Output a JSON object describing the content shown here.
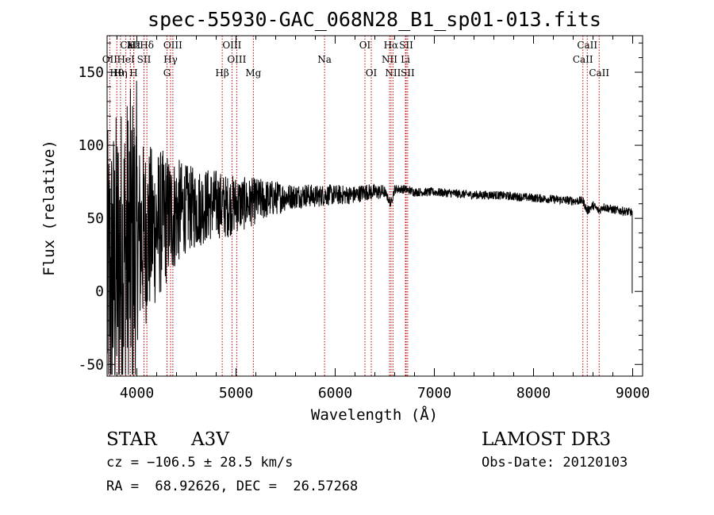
{
  "chart_data": {
    "type": "line",
    "title": "spec-55930-GAC_068N28_B1_sp01-013.fits",
    "xlabel": "Wavelength (Å)",
    "ylabel": "Flux (relative)",
    "xlim": [
      3700,
      9100
    ],
    "ylim": [
      -58,
      175
    ],
    "xticks": [
      4000,
      5000,
      6000,
      7000,
      8000,
      9000
    ],
    "yticks": [
      -50,
      0,
      50,
      100,
      150
    ],
    "series": [
      {
        "name": "spectrum",
        "x": [
          3700,
          3760,
          3820,
          3880,
          3940,
          4000,
          4100,
          4200,
          4300,
          4400,
          4500,
          4600,
          4700,
          4800,
          4900,
          5000,
          5100,
          5200,
          5300,
          5400,
          5500,
          5600,
          5700,
          5800,
          5900,
          6000,
          6100,
          6200,
          6300,
          6400,
          6500,
          6560,
          6600,
          6700,
          6800,
          6900,
          7000,
          7200,
          7400,
          7600,
          7800,
          8000,
          8200,
          8400,
          8500,
          8540,
          8600,
          8660,
          8700,
          8800,
          8900,
          9000
        ],
        "values": [
          0,
          10,
          20,
          25,
          30,
          35,
          40,
          45,
          50,
          54,
          57,
          57,
          59,
          60,
          58,
          60,
          60,
          62,
          63,
          64,
          65,
          65,
          66,
          65,
          66,
          66,
          66,
          66,
          68,
          68,
          68,
          60,
          70,
          70,
          68,
          68,
          68,
          67,
          66,
          66,
          65,
          64,
          63,
          62,
          62,
          55,
          59,
          55,
          58,
          56,
          55,
          54
        ]
      }
    ],
    "line_markers": [
      {
        "label": "CaII",
        "wavelength": 3934,
        "row": 0
      },
      {
        "label": "Hε",
        "wavelength": 3970,
        "row": 0
      },
      {
        "label": "K",
        "wavelength": 3934,
        "row": 0
      },
      {
        "label": "Hδ",
        "wavelength": 4101,
        "row": 0
      },
      {
        "label": "OIII",
        "wavelength": 4363,
        "row": 0
      },
      {
        "label": "OIII",
        "wavelength": 4959,
        "row": 0
      },
      {
        "label": "OI",
        "wavelength": 6300,
        "row": 0
      },
      {
        "label": "Hα",
        "wavelength": 6563,
        "row": 0
      },
      {
        "label": "SII",
        "wavelength": 6716,
        "row": 0
      },
      {
        "label": "CaII",
        "wavelength": 8542,
        "row": 0
      },
      {
        "label": "OII",
        "wavelength": 3727,
        "row": 1
      },
      {
        "label": "HeI",
        "wavelength": 3889,
        "row": 1
      },
      {
        "label": "SII",
        "wavelength": 4072,
        "row": 1
      },
      {
        "label": "Hγ",
        "wavelength": 4340,
        "row": 1
      },
      {
        "label": "OIII",
        "wavelength": 5007,
        "row": 1
      },
      {
        "label": "Na",
        "wavelength": 5893,
        "row": 1
      },
      {
        "label": "NII",
        "wavelength": 6548,
        "row": 1
      },
      {
        "label": "Li",
        "wavelength": 6708,
        "row": 1
      },
      {
        "label": "CaII",
        "wavelength": 8498,
        "row": 1
      },
      {
        "label": "Hθ",
        "wavelength": 3798,
        "row": 2
      },
      {
        "label": "Hη",
        "wavelength": 3835,
        "row": 2
      },
      {
        "label": "H",
        "wavelength": 3968,
        "row": 2
      },
      {
        "label": "G",
        "wavelength": 4304,
        "row": 2
      },
      {
        "label": "Hβ",
        "wavelength": 4861,
        "row": 2
      },
      {
        "label": "Mg",
        "wavelength": 5175,
        "row": 2
      },
      {
        "label": "OI",
        "wavelength": 6364,
        "row": 2
      },
      {
        "label": "NII",
        "wavelength": 6583,
        "row": 2
      },
      {
        "label": "SII",
        "wavelength": 6731,
        "row": 2
      },
      {
        "label": "CaII",
        "wavelength": 8662,
        "row": 2
      }
    ]
  },
  "info": {
    "class": "STAR",
    "subclass": "A3V",
    "survey": "LAMOST DR3",
    "cz": "cz = −106.5 ± 28.5 km/s",
    "obs_date": "Obs-Date: 20120103",
    "radec": "RA =  68.92626, DEC =  26.57268"
  }
}
